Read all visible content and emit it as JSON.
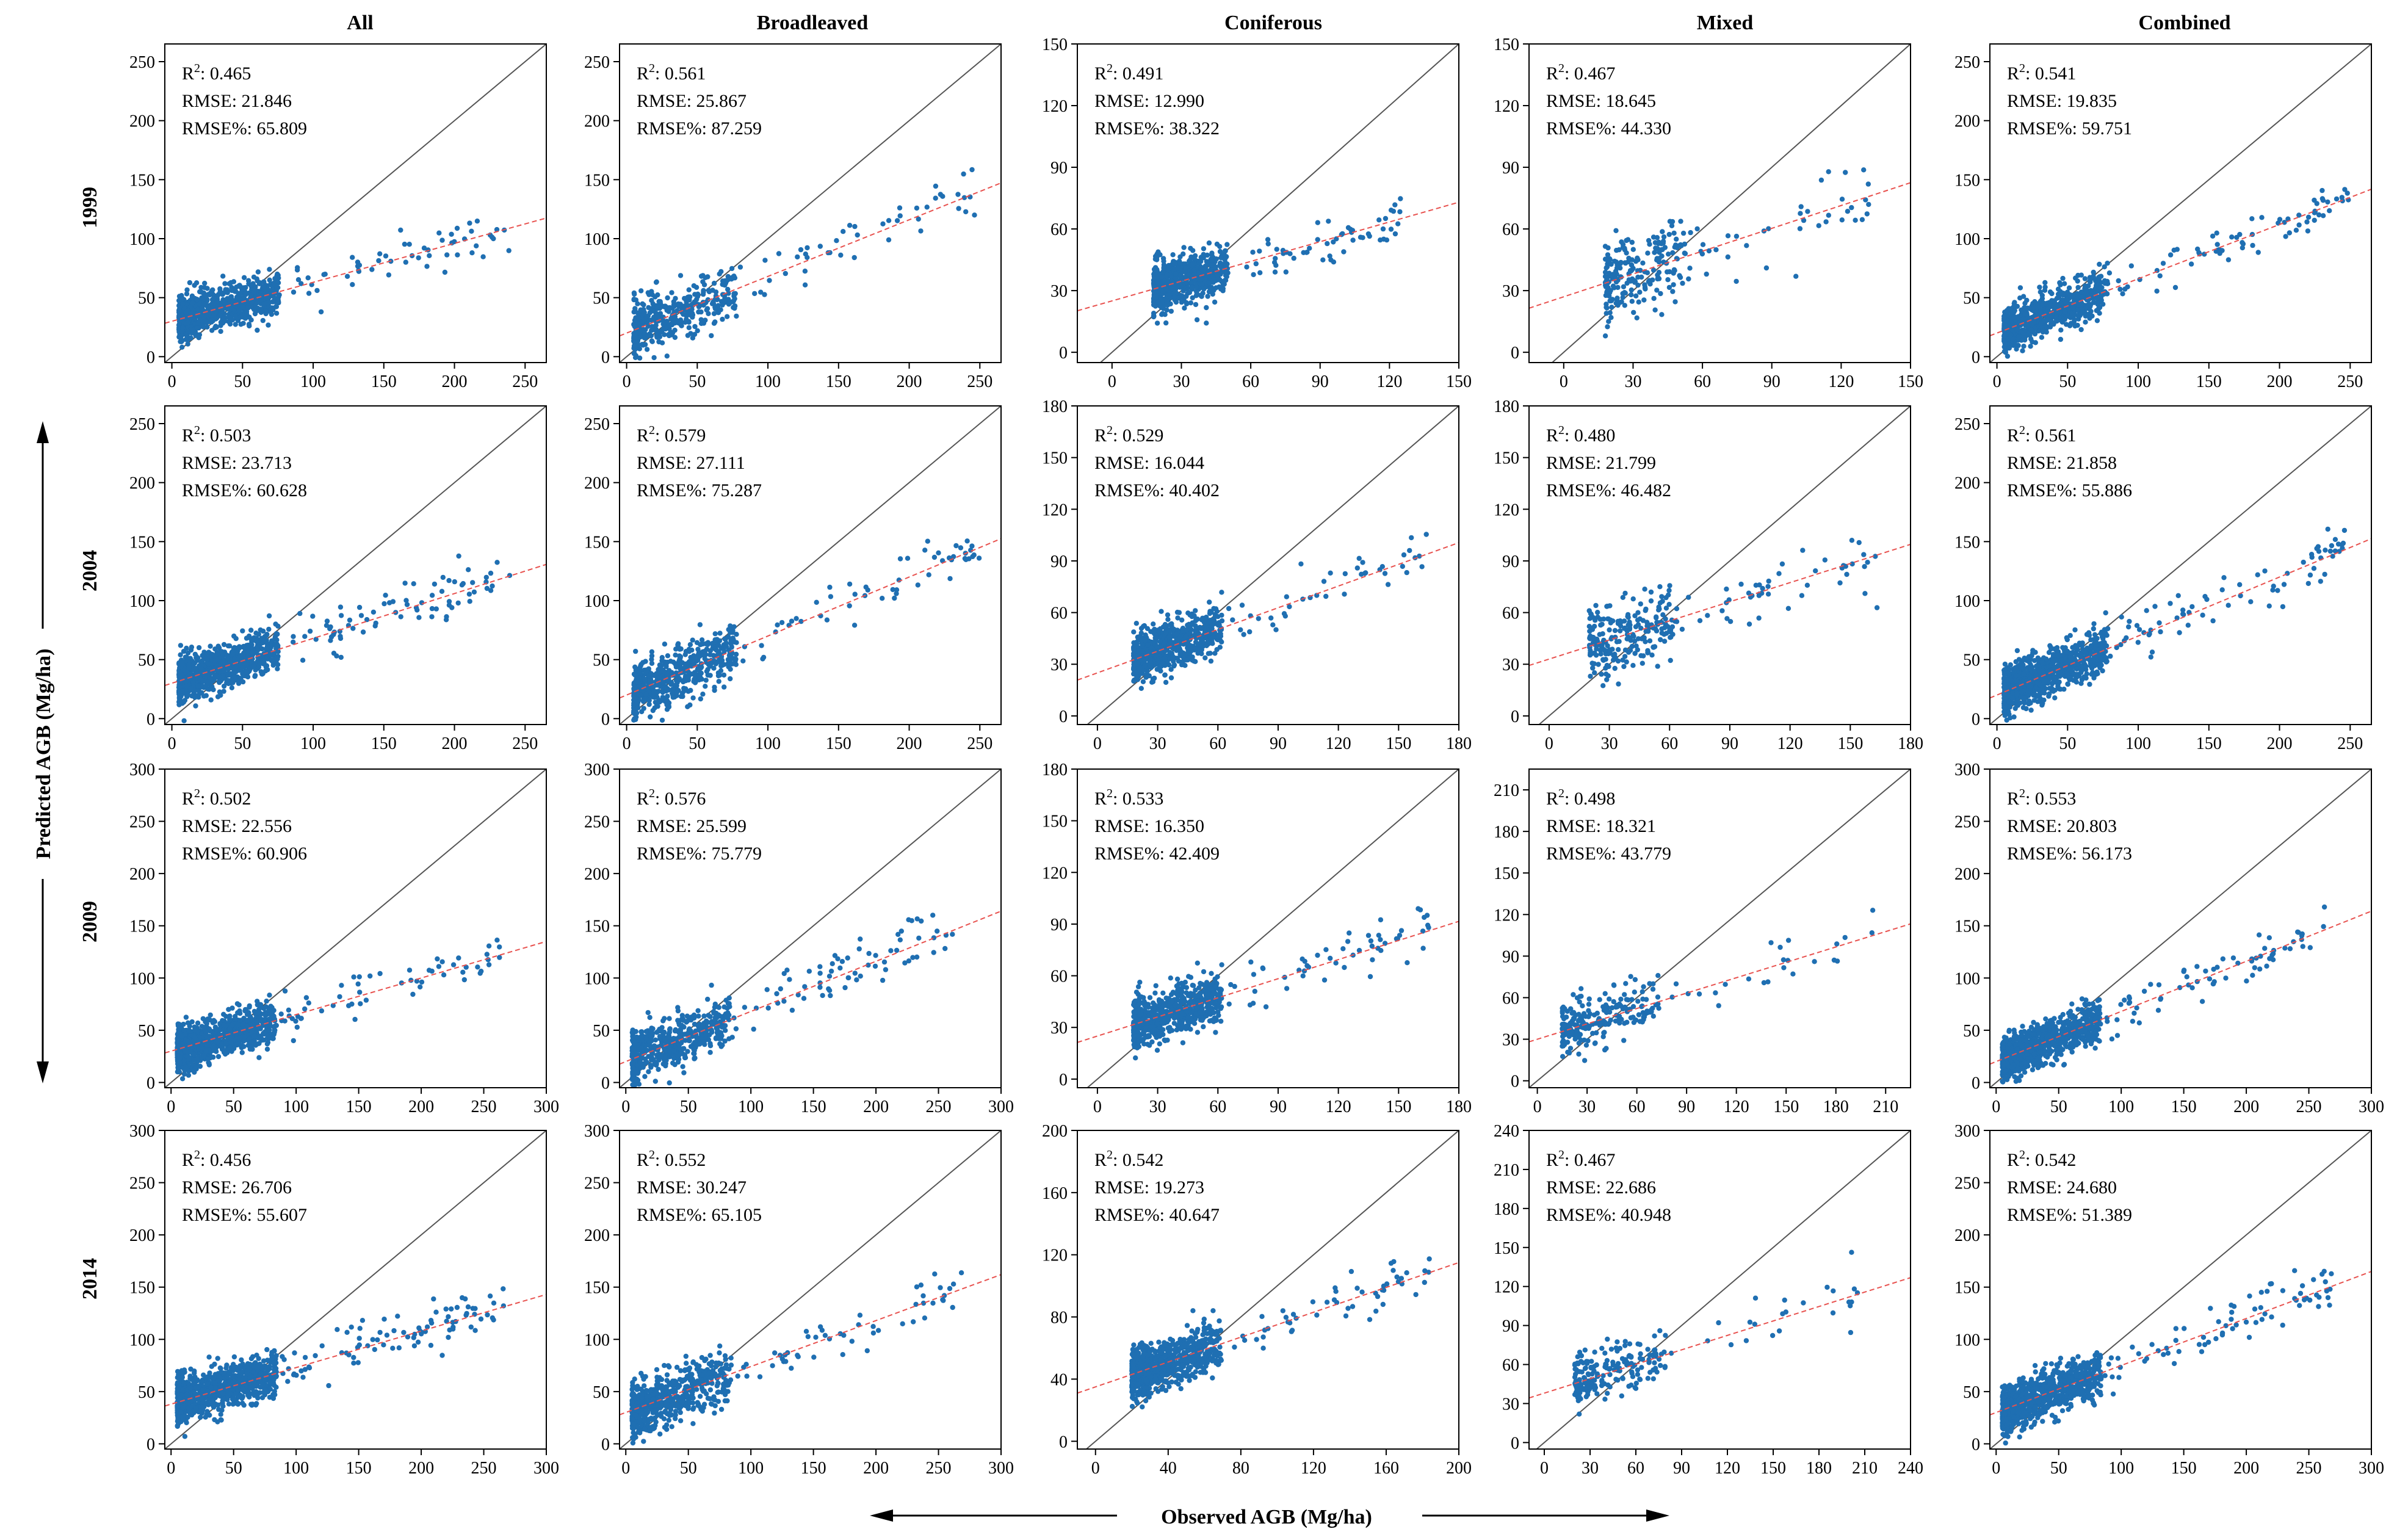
{
  "figure": {
    "x_axis_title": "Observed AGB (Mg/ha)",
    "y_axis_title": "Predicted AGB (Mg/ha)",
    "column_titles": [
      "All",
      "Broadleaved",
      "Coniferous",
      "Mixed",
      "Combined"
    ],
    "row_titles": [
      "1999",
      "2004",
      "2009",
      "2014"
    ],
    "colors": {
      "points": "#1f6fb2",
      "regression": "#e8524f",
      "one_to_one": "#555555",
      "frame": "#000000"
    }
  },
  "chart_data": [
    {
      "type": "scatter",
      "row": "1999",
      "column": "All",
      "xlim": [
        -5,
        265
      ],
      "ylim": [
        -5,
        265
      ],
      "xticks": [
        0,
        50,
        100,
        150,
        200,
        250
      ],
      "yticks": [
        0,
        50,
        100,
        150,
        200,
        250
      ],
      "r2": "0.465",
      "rmse": "21.846",
      "rmse_pct": "65.809",
      "fit": {
        "intercept": 30,
        "slope": 0.33
      },
      "points": {
        "n": 900,
        "x_min": 5,
        "x_max": 240,
        "y_noise": 9,
        "tail": 0.1
      }
    },
    {
      "type": "scatter",
      "row": "1999",
      "column": "Broadleaved",
      "xlim": [
        -5,
        265
      ],
      "ylim": [
        -5,
        265
      ],
      "xticks": [
        0,
        50,
        100,
        150,
        200,
        250
      ],
      "yticks": [
        0,
        50,
        100,
        150,
        200,
        250
      ],
      "r2": "0.561",
      "rmse": "25.867",
      "rmse_pct": "87.259",
      "fit": {
        "intercept": 20,
        "slope": 0.48
      },
      "points": {
        "n": 450,
        "x_min": 5,
        "x_max": 250,
        "y_noise": 12,
        "tail": 0.15
      }
    },
    {
      "type": "scatter",
      "row": "1999",
      "column": "Coniferous",
      "xlim": [
        -15,
        150
      ],
      "ylim": [
        -5,
        150
      ],
      "xticks": [
        0,
        30,
        60,
        90,
        120,
        150
      ],
      "yticks": [
        0,
        30,
        60,
        90,
        120,
        150
      ],
      "r2": "0.491",
      "rmse": "12.990",
      "rmse_pct": "38.322",
      "fit": {
        "intercept": 25,
        "slope": 0.32
      },
      "points": {
        "n": 700,
        "x_min": 18,
        "x_max": 125,
        "y_noise": 6,
        "tail": 0.1
      }
    },
    {
      "type": "scatter",
      "row": "1999",
      "column": "Mixed",
      "xlim": [
        -15,
        150
      ],
      "ylim": [
        -5,
        150
      ],
      "xticks": [
        0,
        30,
        60,
        90,
        120,
        150
      ],
      "yticks": [
        0,
        30,
        60,
        90,
        120,
        150
      ],
      "r2": "0.467",
      "rmse": "18.645",
      "rmse_pct": "44.330",
      "fit": {
        "intercept": 27,
        "slope": 0.37
      },
      "points": {
        "n": 260,
        "x_min": 18,
        "x_max": 135,
        "y_noise": 10,
        "tail": 0.2
      }
    },
    {
      "type": "scatter",
      "row": "1999",
      "column": "Combined",
      "xlim": [
        -5,
        265
      ],
      "ylim": [
        -5,
        265
      ],
      "xticks": [
        0,
        50,
        100,
        150,
        200,
        250
      ],
      "yticks": [
        0,
        50,
        100,
        150,
        200,
        250
      ],
      "r2": "0.541",
      "rmse": "19.835",
      "rmse_pct": "59.751",
      "fit": {
        "intercept": 20,
        "slope": 0.46
      },
      "points": {
        "n": 900,
        "x_min": 5,
        "x_max": 250,
        "y_noise": 9,
        "tail": 0.1
      }
    },
    {
      "type": "scatter",
      "row": "2004",
      "column": "All",
      "xlim": [
        -5,
        265
      ],
      "ylim": [
        -5,
        265
      ],
      "xticks": [
        0,
        50,
        100,
        150,
        200,
        250
      ],
      "yticks": [
        0,
        50,
        100,
        150,
        200,
        250
      ],
      "r2": "0.503",
      "rmse": "23.713",
      "rmse_pct": "60.628",
      "fit": {
        "intercept": 30,
        "slope": 0.38
      },
      "points": {
        "n": 950,
        "x_min": 5,
        "x_max": 240,
        "y_noise": 10,
        "tail": 0.1
      }
    },
    {
      "type": "scatter",
      "row": "2004",
      "column": "Broadleaved",
      "xlim": [
        -5,
        265
      ],
      "ylim": [
        -5,
        265
      ],
      "xticks": [
        0,
        50,
        100,
        150,
        200,
        250
      ],
      "yticks": [
        0,
        50,
        100,
        150,
        200,
        250
      ],
      "r2": "0.579",
      "rmse": "27.111",
      "rmse_pct": "75.287",
      "fit": {
        "intercept": 20,
        "slope": 0.5
      },
      "points": {
        "n": 600,
        "x_min": 5,
        "x_max": 250,
        "y_noise": 12,
        "tail": 0.15
      }
    },
    {
      "type": "scatter",
      "row": "2004",
      "column": "Coniferous",
      "xlim": [
        -10,
        180
      ],
      "ylim": [
        -5,
        180
      ],
      "xticks": [
        0,
        30,
        60,
        90,
        120,
        150,
        180
      ],
      "yticks": [
        0,
        30,
        60,
        90,
        120,
        150,
        180
      ],
      "r2": "0.529",
      "rmse": "16.044",
      "rmse_pct": "40.402",
      "fit": {
        "intercept": 25,
        "slope": 0.42
      },
      "points": {
        "n": 700,
        "x_min": 18,
        "x_max": 165,
        "y_noise": 7,
        "tail": 0.1
      }
    },
    {
      "type": "scatter",
      "row": "2004",
      "column": "Mixed",
      "xlim": [
        -10,
        180
      ],
      "ylim": [
        -5,
        180
      ],
      "xticks": [
        0,
        30,
        60,
        90,
        120,
        150,
        180
      ],
      "yticks": [
        0,
        30,
        60,
        90,
        120,
        150,
        180
      ],
      "r2": "0.480",
      "rmse": "21.799",
      "rmse_pct": "46.482",
      "fit": {
        "intercept": 33,
        "slope": 0.37
      },
      "points": {
        "n": 280,
        "x_min": 20,
        "x_max": 165,
        "y_noise": 10,
        "tail": 0.2
      }
    },
    {
      "type": "scatter",
      "row": "2004",
      "column": "Combined",
      "xlim": [
        -5,
        265
      ],
      "ylim": [
        -5,
        265
      ],
      "xticks": [
        0,
        50,
        100,
        150,
        200,
        250
      ],
      "yticks": [
        0,
        50,
        100,
        150,
        200,
        250
      ],
      "r2": "0.561",
      "rmse": "21.858",
      "rmse_pct": "55.886",
      "fit": {
        "intercept": 20,
        "slope": 0.5
      },
      "points": {
        "n": 950,
        "x_min": 5,
        "x_max": 250,
        "y_noise": 10,
        "tail": 0.1
      }
    },
    {
      "type": "scatter",
      "row": "2009",
      "column": "All",
      "xlim": [
        -5,
        300
      ],
      "ylim": [
        -5,
        300
      ],
      "xticks": [
        0,
        50,
        100,
        150,
        200,
        250,
        300
      ],
      "yticks": [
        0,
        50,
        100,
        150,
        200,
        250,
        300
      ],
      "r2": "0.502",
      "rmse": "22.556",
      "rmse_pct": "60.906",
      "fit": {
        "intercept": 30,
        "slope": 0.35
      },
      "points": {
        "n": 950,
        "x_min": 5,
        "x_max": 265,
        "y_noise": 10,
        "tail": 0.1
      }
    },
    {
      "type": "scatter",
      "row": "2009",
      "column": "Broadleaved",
      "xlim": [
        -5,
        300
      ],
      "ylim": [
        -5,
        300
      ],
      "xticks": [
        0,
        50,
        100,
        150,
        200,
        250,
        300
      ],
      "yticks": [
        0,
        50,
        100,
        150,
        200,
        250,
        300
      ],
      "r2": "0.576",
      "rmse": "25.599",
      "rmse_pct": "75.779",
      "fit": {
        "intercept": 20,
        "slope": 0.48
      },
      "points": {
        "n": 600,
        "x_min": 5,
        "x_max": 265,
        "y_noise": 12,
        "tail": 0.15
      }
    },
    {
      "type": "scatter",
      "row": "2009",
      "column": "Coniferous",
      "xlim": [
        -10,
        180
      ],
      "ylim": [
        -5,
        180
      ],
      "xticks": [
        0,
        30,
        60,
        90,
        120,
        150,
        180
      ],
      "yticks": [
        0,
        30,
        60,
        90,
        120,
        150,
        180
      ],
      "r2": "0.533",
      "rmse": "16.350",
      "rmse_pct": "42.409",
      "fit": {
        "intercept": 25,
        "slope": 0.37
      },
      "points": {
        "n": 700,
        "x_min": 18,
        "x_max": 165,
        "y_noise": 7,
        "tail": 0.1
      }
    },
    {
      "type": "scatter",
      "row": "2009",
      "column": "Mixed",
      "xlim": [
        -5,
        225
      ],
      "ylim": [
        -5,
        225
      ],
      "xticks": [
        0,
        30,
        60,
        90,
        120,
        150,
        180,
        210
      ],
      "yticks": [
        0,
        30,
        60,
        90,
        120,
        150,
        180,
        210
      ],
      "r2": "0.498",
      "rmse": "18.321",
      "rmse_pct": "43.779",
      "fit": {
        "intercept": 30,
        "slope": 0.37
      },
      "points": {
        "n": 240,
        "x_min": 15,
        "x_max": 210,
        "y_noise": 9,
        "tail": 0.2
      }
    },
    {
      "type": "scatter",
      "row": "2009",
      "column": "Combined",
      "xlim": [
        -5,
        300
      ],
      "ylim": [
        -5,
        300
      ],
      "xticks": [
        0,
        50,
        100,
        150,
        200,
        250,
        300
      ],
      "yticks": [
        0,
        50,
        100,
        150,
        200,
        250,
        300
      ],
      "r2": "0.553",
      "rmse": "20.803",
      "rmse_pct": "56.173",
      "fit": {
        "intercept": 20,
        "slope": 0.48
      },
      "points": {
        "n": 950,
        "x_min": 5,
        "x_max": 265,
        "y_noise": 10,
        "tail": 0.1
      }
    },
    {
      "type": "scatter",
      "row": "2014",
      "column": "All",
      "xlim": [
        -5,
        300
      ],
      "ylim": [
        -5,
        300
      ],
      "xticks": [
        0,
        50,
        100,
        150,
        200,
        250,
        300
      ],
      "yticks": [
        0,
        50,
        100,
        150,
        200,
        250,
        300
      ],
      "r2": "0.456",
      "rmse": "26.706",
      "rmse_pct": "55.607",
      "fit": {
        "intercept": 38,
        "slope": 0.35
      },
      "points": {
        "n": 1000,
        "x_min": 5,
        "x_max": 270,
        "y_noise": 11,
        "tail": 0.1
      }
    },
    {
      "type": "scatter",
      "row": "2014",
      "column": "Broadleaved",
      "xlim": [
        -5,
        300
      ],
      "ylim": [
        -5,
        300
      ],
      "xticks": [
        0,
        50,
        100,
        150,
        200,
        250,
        300
      ],
      "yticks": [
        0,
        50,
        100,
        150,
        200,
        250,
        300
      ],
      "r2": "0.552",
      "rmse": "30.247",
      "rmse_pct": "65.105",
      "fit": {
        "intercept": 30,
        "slope": 0.44
      },
      "points": {
        "n": 650,
        "x_min": 5,
        "x_max": 270,
        "y_noise": 13,
        "tail": 0.15
      }
    },
    {
      "type": "scatter",
      "row": "2014",
      "column": "Coniferous",
      "xlim": [
        -10,
        200
      ],
      "ylim": [
        -5,
        200
      ],
      "xticks": [
        0,
        40,
        80,
        120,
        160,
        200
      ],
      "yticks": [
        0,
        40,
        80,
        120,
        160,
        200
      ],
      "r2": "0.542",
      "rmse": "19.273",
      "rmse_pct": "40.647",
      "fit": {
        "intercept": 35,
        "slope": 0.4
      },
      "points": {
        "n": 750,
        "x_min": 20,
        "x_max": 185,
        "y_noise": 8,
        "tail": 0.1
      }
    },
    {
      "type": "scatter",
      "row": "2014",
      "column": "Mixed",
      "xlim": [
        -10,
        240
      ],
      "ylim": [
        -5,
        240
      ],
      "xticks": [
        0,
        30,
        60,
        90,
        120,
        150,
        180,
        210,
        240
      ],
      "yticks": [
        0,
        30,
        60,
        90,
        120,
        150,
        180,
        210,
        240
      ],
      "r2": "0.467",
      "rmse": "22.686",
      "rmse_pct": "40.948",
      "fit": {
        "intercept": 38,
        "slope": 0.37
      },
      "points": {
        "n": 220,
        "x_min": 20,
        "x_max": 220,
        "y_noise": 10,
        "tail": 0.2
      }
    },
    {
      "type": "scatter",
      "row": "2014",
      "column": "Combined",
      "xlim": [
        -5,
        300
      ],
      "ylim": [
        -5,
        300
      ],
      "xticks": [
        0,
        50,
        100,
        150,
        200,
        250,
        300
      ],
      "yticks": [
        0,
        50,
        100,
        150,
        200,
        250,
        300
      ],
      "r2": "0.542",
      "rmse": "24.680",
      "rmse_pct": "51.389",
      "fit": {
        "intercept": 30,
        "slope": 0.45
      },
      "points": {
        "n": 1000,
        "x_min": 5,
        "x_max": 270,
        "y_noise": 11,
        "tail": 0.1
      }
    }
  ]
}
